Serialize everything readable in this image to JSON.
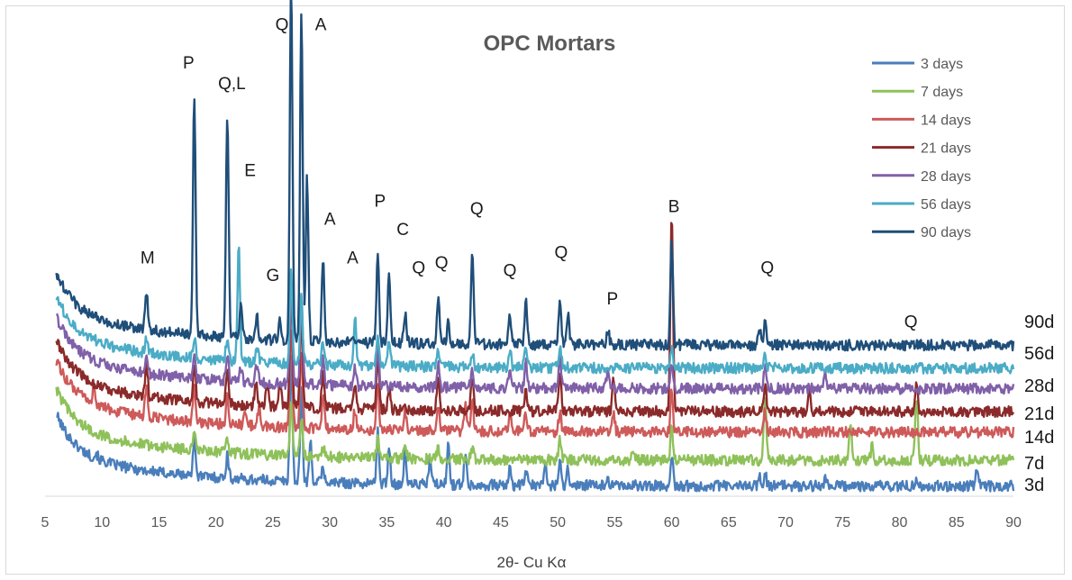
{
  "chart_data": {
    "type": "line",
    "title": "OPC Mortars",
    "xlabel": "2θ- Cu Kα",
    "ylabel": "",
    "xlim": [
      5,
      90
    ],
    "xticks": [
      "5",
      "10",
      "15",
      "20",
      "25",
      "30",
      "35",
      "40",
      "45",
      "50",
      "55",
      "60",
      "65",
      "70",
      "75",
      "80",
      "85",
      "90"
    ],
    "grid": false,
    "legend_position": "top-right",
    "series": [
      {
        "name": "3 days",
        "color": "#4A7EBB",
        "curve_label": "3d",
        "offset": 0.4,
        "peaks": [
          [
            9.5,
            0.2
          ],
          [
            18.1,
            1.5
          ],
          [
            21.0,
            0.9
          ],
          [
            26.6,
            5.0
          ],
          [
            27.5,
            3.5
          ],
          [
            28.3,
            1.5
          ],
          [
            29.4,
            0.6
          ],
          [
            34.2,
            2.0
          ],
          [
            35.2,
            1.4
          ],
          [
            36.6,
            1.2
          ],
          [
            38.8,
            1.0
          ],
          [
            40.4,
            1.6
          ],
          [
            41.9,
            1.3
          ],
          [
            45.8,
            0.6
          ],
          [
            47.2,
            0.6
          ],
          [
            48.9,
            0.8
          ],
          [
            50.2,
            1.0
          ],
          [
            50.9,
            0.6
          ],
          [
            54.4,
            0.3
          ],
          [
            60.0,
            1.2
          ],
          [
            67.7,
            0.4
          ],
          [
            68.2,
            0.5
          ],
          [
            73.5,
            0.3
          ],
          [
            81.5,
            0.3
          ],
          [
            86.8,
            0.8
          ]
        ]
      },
      {
        "name": "7 days",
        "color": "#8FC15A",
        "curve_label": "7d",
        "offset": 1.4,
        "peaks": [
          [
            18.1,
            0.6
          ],
          [
            21.0,
            0.5
          ],
          [
            26.6,
            2.2
          ],
          [
            27.5,
            1.5
          ],
          [
            29.4,
            0.4
          ],
          [
            34.2,
            0.8
          ],
          [
            36.6,
            0.6
          ],
          [
            39.5,
            0.5
          ],
          [
            42.5,
            0.4
          ],
          [
            50.2,
            0.8
          ],
          [
            56.6,
            0.5
          ],
          [
            60.0,
            1.2
          ],
          [
            68.2,
            2.4
          ],
          [
            75.7,
            1.6
          ],
          [
            77.6,
            0.6
          ],
          [
            81.5,
            2.6
          ]
        ]
      },
      {
        "name": "14 days",
        "color": "#CE5A5A",
        "curve_label": "14d",
        "offset": 2.5,
        "peaks": [
          [
            9.3,
            0.7
          ],
          [
            13.9,
            1.1
          ],
          [
            18.1,
            1.4
          ],
          [
            21.0,
            1.2
          ],
          [
            22.5,
            0.6
          ],
          [
            23.8,
            0.8
          ],
          [
            26.6,
            4.0
          ],
          [
            27.5,
            3.0
          ],
          [
            29.4,
            1.3
          ],
          [
            32.2,
            0.8
          ],
          [
            34.2,
            1.8
          ],
          [
            36.6,
            0.8
          ],
          [
            39.5,
            1.1
          ],
          [
            41.9,
            1.0
          ],
          [
            42.5,
            1.1
          ],
          [
            45.8,
            0.6
          ],
          [
            47.2,
            0.8
          ],
          [
            50.2,
            0.8
          ],
          [
            54.9,
            0.7
          ],
          [
            60.0,
            1.6
          ],
          [
            68.2,
            0.8
          ]
        ]
      },
      {
        "name": "21 days",
        "color": "#8B2A2A",
        "curve_label": "21d",
        "offset": 3.3,
        "peaks": [
          [
            13.9,
            1.3
          ],
          [
            18.1,
            1.4
          ],
          [
            21.0,
            1.3
          ],
          [
            23.5,
            0.9
          ],
          [
            24.5,
            0.8
          ],
          [
            25.6,
            1.0
          ],
          [
            26.6,
            4.6
          ],
          [
            27.5,
            3.6
          ],
          [
            29.4,
            1.3
          ],
          [
            32.2,
            0.9
          ],
          [
            34.2,
            2.2
          ],
          [
            35.2,
            0.9
          ],
          [
            39.5,
            1.3
          ],
          [
            42.5,
            1.4
          ],
          [
            47.2,
            0.9
          ],
          [
            50.2,
            1.5
          ],
          [
            54.9,
            1.2
          ],
          [
            60.0,
            7.6
          ],
          [
            68.2,
            1.1
          ],
          [
            72.1,
            0.8
          ],
          [
            81.5,
            1.0
          ]
        ]
      },
      {
        "name": "28 days",
        "color": "#8060A8",
        "curve_label": "28d",
        "offset": 4.2,
        "peaks": [
          [
            13.9,
            0.7
          ],
          [
            18.1,
            1.0
          ],
          [
            21.0,
            1.0
          ],
          [
            22.2,
            0.6
          ],
          [
            23.6,
            0.7
          ],
          [
            26.6,
            4.2
          ],
          [
            27.5,
            3.4
          ],
          [
            29.4,
            1.1
          ],
          [
            32.2,
            0.7
          ],
          [
            34.2,
            1.4
          ],
          [
            39.5,
            0.9
          ],
          [
            42.5,
            0.7
          ],
          [
            45.8,
            0.6
          ],
          [
            47.2,
            1.0
          ],
          [
            50.2,
            1.2
          ],
          [
            54.4,
            0.6
          ],
          [
            60.0,
            1.0
          ],
          [
            68.2,
            0.8
          ],
          [
            73.5,
            0.6
          ]
        ]
      },
      {
        "name": "56 days",
        "color": "#4BACC6",
        "curve_label": "56d",
        "offset": 5.0,
        "peaks": [
          [
            13.9,
            0.5
          ],
          [
            18.1,
            0.8
          ],
          [
            21.0,
            0.9
          ],
          [
            22.0,
            4.4
          ],
          [
            23.6,
            0.6
          ],
          [
            26.6,
            3.6
          ],
          [
            27.5,
            2.6
          ],
          [
            29.4,
            0.9
          ],
          [
            32.2,
            1.9
          ],
          [
            34.2,
            1.1
          ],
          [
            35.2,
            1.0
          ],
          [
            39.5,
            0.7
          ],
          [
            42.5,
            0.5
          ],
          [
            45.8,
            0.7
          ],
          [
            47.2,
            0.8
          ],
          [
            50.2,
            0.9
          ],
          [
            60.0,
            0.8
          ],
          [
            68.2,
            0.6
          ]
        ]
      },
      {
        "name": "90 days",
        "color": "#1F4E79",
        "curve_label": "90d",
        "offset": 5.9,
        "peaks": [
          [
            13.9,
            1.5
          ],
          [
            18.1,
            9.4
          ],
          [
            21.0,
            8.8
          ],
          [
            22.2,
            1.5
          ],
          [
            23.6,
            0.9
          ],
          [
            25.6,
            0.7
          ],
          [
            26.6,
            14.0
          ],
          [
            27.5,
            13.0
          ],
          [
            28.0,
            6.4
          ],
          [
            29.4,
            3.2
          ],
          [
            34.2,
            3.5
          ],
          [
            35.2,
            2.8
          ],
          [
            36.6,
            1.2
          ],
          [
            39.5,
            1.8
          ],
          [
            40.4,
            0.8
          ],
          [
            42.5,
            3.5
          ],
          [
            45.8,
            1.2
          ],
          [
            47.2,
            1.7
          ],
          [
            50.2,
            1.8
          ],
          [
            50.9,
            1.2
          ],
          [
            54.4,
            0.6
          ],
          [
            60.0,
            4.0
          ],
          [
            67.7,
            0.7
          ],
          [
            68.2,
            0.9
          ]
        ]
      }
    ],
    "annotations": [
      {
        "text": "M",
        "x": 14.0,
        "y": 9.1
      },
      {
        "text": "P",
        "x": 17.6,
        "y": 16.7
      },
      {
        "text": "Q,L",
        "x": 21.4,
        "y": 15.9
      },
      {
        "text": "E",
        "x": 23.0,
        "y": 12.5
      },
      {
        "text": "G",
        "x": 25.0,
        "y": 8.4
      },
      {
        "text": "Q",
        "x": 25.8,
        "y": 18.2
      },
      {
        "text": "A",
        "x": 29.2,
        "y": 18.2
      },
      {
        "text": "A",
        "x": 30.0,
        "y": 10.6
      },
      {
        "text": "A",
        "x": 32.0,
        "y": 9.1
      },
      {
        "text": "P",
        "x": 34.4,
        "y": 11.3
      },
      {
        "text": "C",
        "x": 36.4,
        "y": 10.2
      },
      {
        "text": "Q",
        "x": 37.8,
        "y": 8.7
      },
      {
        "text": "Q",
        "x": 39.8,
        "y": 8.9
      },
      {
        "text": "Q",
        "x": 42.9,
        "y": 11.0
      },
      {
        "text": "Q",
        "x": 45.8,
        "y": 8.6
      },
      {
        "text": "Q",
        "x": 50.3,
        "y": 9.3
      },
      {
        "text": "P",
        "x": 54.8,
        "y": 7.5
      },
      {
        "text": "B",
        "x": 60.2,
        "y": 11.1
      },
      {
        "text": "Q",
        "x": 68.4,
        "y": 8.7
      },
      {
        "text": "Q",
        "x": 81.0,
        "y": 6.6
      }
    ]
  }
}
